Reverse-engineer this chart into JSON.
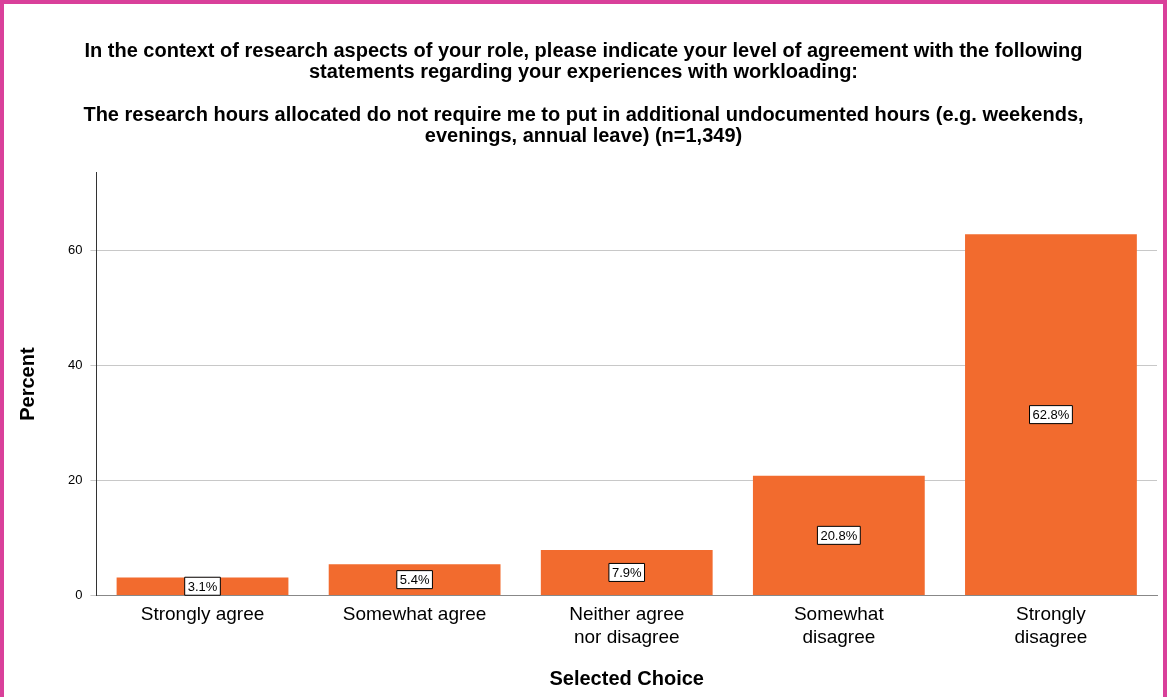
{
  "chart_data": {
    "type": "bar",
    "title": "In the context of research aspects of your role, please indicate your level of agreement with the following statements regarding your experiences with workloading:",
    "subtitle": "The research hours allocated do not require me to put in additional undocumented hours (e.g. weekends, evenings, annual leave) (n=1,349)",
    "xlabel": "Selected Choice",
    "ylabel": "Percent",
    "categories": [
      "Strongly agree",
      "Somewhat agree",
      "Neither agree nor disagree",
      "Somewhat disagree",
      "Strongly disagree"
    ],
    "values": [
      3.1,
      5.4,
      7.9,
      20.8,
      62.8
    ],
    "value_labels": [
      "3.1%",
      "5.4%",
      "7.9%",
      "20.8%",
      "62.8%"
    ],
    "color": "#f26b2e",
    "ylim": [
      0,
      73.5
    ],
    "yticks": [
      0,
      20,
      40,
      60
    ],
    "grid": "y",
    "legend": false
  }
}
